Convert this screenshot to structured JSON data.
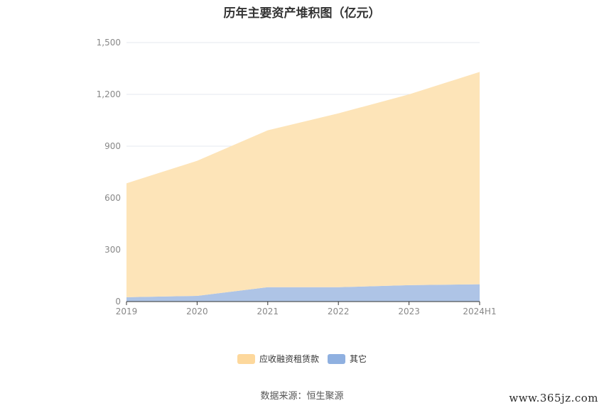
{
  "chart_data": {
    "type": "area",
    "stacked": true,
    "title": "历年主要资产堆积图（亿元）",
    "xlabel": "",
    "ylabel": "",
    "categories": [
      "2019",
      "2020",
      "2021",
      "2022",
      "2023",
      "2024H1"
    ],
    "ylim": [
      0,
      1500
    ],
    "yticks": [
      0,
      300,
      600,
      900,
      1200,
      1500
    ],
    "ytick_labels": [
      "0",
      "300",
      "600",
      "900",
      "1,200",
      "1,500"
    ],
    "grid": true,
    "legend_position": "bottom",
    "series": [
      {
        "name": "其它",
        "color": "#aec4e6",
        "legend_color": "#8fb0e0",
        "values": [
          25,
          33,
          83,
          83,
          95,
          100
        ]
      },
      {
        "name": "应收融资租赁款",
        "color": "#fde4b8",
        "legend_color": "#fdd89c",
        "values": [
          660,
          782,
          909,
          1007,
          1105,
          1230
        ]
      }
    ]
  },
  "source_text": "数据来源：恒生聚源",
  "watermark_text": "www.365jz.com"
}
